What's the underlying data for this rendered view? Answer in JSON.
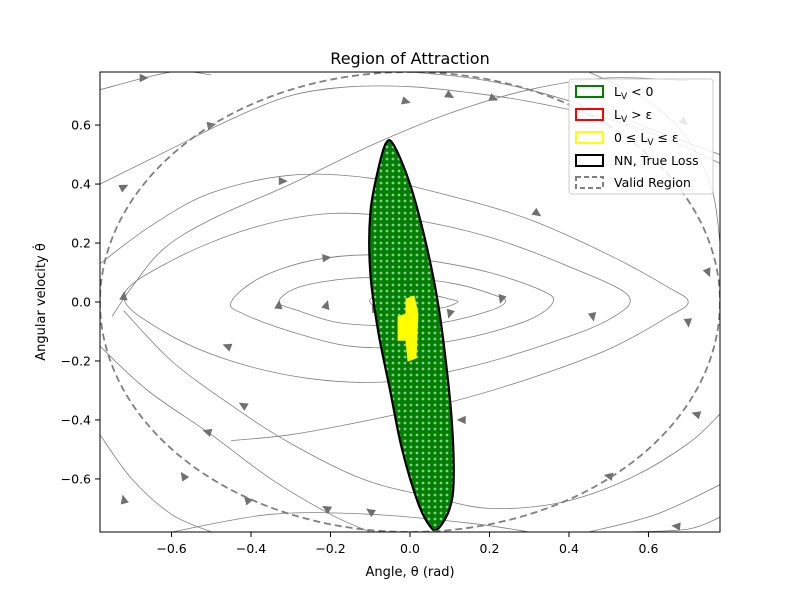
{
  "chart_data": {
    "type": "scatter",
    "title": "Region of Attraction",
    "xlabel": "Angle, θ (rad)",
    "ylabel": "Angular velocity θ̇",
    "xlim": [
      -0.78,
      0.78
    ],
    "ylim": [
      -0.78,
      0.78
    ],
    "x_ticks": [
      -0.6,
      -0.4,
      -0.2,
      0.0,
      0.2,
      0.4,
      0.6
    ],
    "y_ticks": [
      -0.6,
      -0.4,
      -0.2,
      0.0,
      0.2,
      0.4,
      0.6
    ],
    "x_tick_labels": [
      "−0.6",
      "−0.4",
      "−0.2",
      "0.0",
      "0.2",
      "0.4",
      "0.6"
    ],
    "y_tick_labels": [
      "−0.6",
      "−0.4",
      "−0.2",
      "0.0",
      "0.2",
      "0.4",
      "0.6"
    ],
    "grid": false,
    "legend_position": "top-right",
    "legend": [
      {
        "label": "L_V < 0",
        "color": "#008000",
        "style": "patch"
      },
      {
        "label": "L_V > ε",
        "color": "#ff0000",
        "style": "patch"
      },
      {
        "label": "0 ≤ L_V ≤ ε",
        "color": "#ffff00",
        "style": "patch"
      },
      {
        "label": "NN, True Loss",
        "color": "#000000",
        "style": "patch"
      },
      {
        "label": "Valid Region",
        "color": "#808080",
        "style": "dashed-patch"
      }
    ],
    "valid_region_ellipse": {
      "center": [
        0,
        0
      ],
      "semi_axis_x": 0.78,
      "semi_axis_y": 0.78,
      "color": "#808080",
      "line": "dashed"
    },
    "nn_level_set_boundary": [
      [
        0.07,
        -0.77
      ],
      [
        0.1,
        -0.7
      ],
      [
        0.11,
        -0.6
      ],
      [
        0.105,
        -0.4
      ],
      [
        0.09,
        -0.2
      ],
      [
        0.07,
        0.0
      ],
      [
        0.04,
        0.2
      ],
      [
        0.0,
        0.4
      ],
      [
        -0.04,
        0.53
      ],
      [
        -0.06,
        0.54
      ],
      [
        -0.08,
        0.45
      ],
      [
        -0.1,
        0.3
      ],
      [
        -0.1,
        0.1
      ],
      [
        -0.08,
        -0.1
      ],
      [
        -0.05,
        -0.3
      ],
      [
        -0.02,
        -0.5
      ],
      [
        0.02,
        -0.68
      ],
      [
        0.05,
        -0.76
      ]
    ],
    "lv_negative_color": "#008000",
    "lv_small_region": {
      "x": [
        -0.03,
        0.01
      ],
      "y": [
        -0.2,
        0.02
      ],
      "color": "#ffff00"
    },
    "lv_small_region_shape": [
      [
        -0.03,
        -0.05
      ],
      [
        -0.01,
        -0.04
      ],
      [
        -0.01,
        0.01
      ],
      [
        0.01,
        0.02
      ],
      [
        0.02,
        -0.04
      ],
      [
        0.015,
        -0.19
      ],
      [
        -0.005,
        -0.2
      ],
      [
        -0.01,
        -0.13
      ],
      [
        -0.03,
        -0.13
      ]
    ],
    "streamlines_color": "#808080",
    "streamlines": [
      [
        [
          0.7,
          0.75
        ],
        [
          0.5,
          0.76
        ],
        [
          0.3,
          0.72
        ],
        [
          0.1,
          0.64
        ],
        [
          -0.1,
          0.53
        ],
        [
          -0.3,
          0.4
        ],
        [
          -0.5,
          0.28
        ],
        [
          -0.62,
          0.18
        ],
        [
          -0.7,
          0.05
        ],
        [
          -0.75,
          -0.05
        ]
      ],
      [
        [
          -0.78,
          0.72
        ],
        [
          -0.6,
          0.78
        ],
        [
          -0.5,
          0.77
        ]
      ],
      [
        [
          -0.78,
          0.4
        ],
        [
          -0.6,
          0.52
        ],
        [
          -0.45,
          0.62
        ],
        [
          -0.3,
          0.7
        ],
        [
          -0.15,
          0.73
        ],
        [
          0.0,
          0.73
        ],
        [
          0.15,
          0.71
        ],
        [
          0.3,
          0.68
        ],
        [
          0.5,
          0.62
        ],
        [
          0.65,
          0.55
        ],
        [
          0.78,
          0.47
        ]
      ],
      [
        [
          -0.78,
          0.13
        ],
        [
          -0.65,
          0.26
        ],
        [
          -0.5,
          0.37
        ],
        [
          -0.3,
          0.43
        ],
        [
          -0.1,
          0.42
        ],
        [
          0.1,
          0.36
        ],
        [
          0.3,
          0.28
        ],
        [
          0.5,
          0.16
        ],
        [
          0.65,
          0.05
        ],
        [
          0.7,
          0.0
        ],
        [
          0.65,
          -0.05
        ],
        [
          0.5,
          -0.16
        ],
        [
          0.3,
          -0.26
        ],
        [
          0.1,
          -0.34
        ],
        [
          -0.1,
          -0.4
        ],
        [
          -0.3,
          -0.45
        ],
        [
          -0.45,
          -0.47
        ]
      ],
      [
        [
          -0.72,
          0.02
        ],
        [
          -0.6,
          0.14
        ],
        [
          -0.4,
          0.25
        ],
        [
          -0.2,
          0.3
        ],
        [
          0.0,
          0.28
        ],
        [
          0.2,
          0.22
        ],
        [
          0.4,
          0.12
        ],
        [
          0.55,
          0.02
        ],
        [
          0.5,
          -0.06
        ],
        [
          0.35,
          -0.14
        ],
        [
          0.15,
          -0.22
        ],
        [
          -0.05,
          -0.27
        ],
        [
          -0.25,
          -0.26
        ],
        [
          -0.45,
          -0.2
        ],
        [
          -0.62,
          -0.1
        ],
        [
          -0.72,
          0.02
        ]
      ],
      [
        [
          -0.45,
          0.0
        ],
        [
          -0.38,
          0.08
        ],
        [
          -0.25,
          0.14
        ],
        [
          -0.1,
          0.16
        ],
        [
          0.05,
          0.14
        ],
        [
          0.2,
          0.1
        ],
        [
          0.33,
          0.04
        ],
        [
          0.36,
          0.0
        ],
        [
          0.3,
          -0.06
        ],
        [
          0.15,
          -0.12
        ],
        [
          0.0,
          -0.15
        ],
        [
          -0.15,
          -0.15
        ],
        [
          -0.3,
          -0.1
        ],
        [
          -0.42,
          -0.04
        ],
        [
          -0.45,
          0.0
        ]
      ],
      [
        [
          -0.33,
          0.0
        ],
        [
          -0.28,
          0.05
        ],
        [
          -0.15,
          0.08
        ],
        [
          0.0,
          0.08
        ],
        [
          0.12,
          0.06
        ],
        [
          0.22,
          0.02
        ],
        [
          0.24,
          0.0
        ],
        [
          0.2,
          -0.03
        ],
        [
          0.08,
          -0.07
        ],
        [
          -0.05,
          -0.08
        ],
        [
          -0.18,
          -0.07
        ],
        [
          -0.28,
          -0.03
        ],
        [
          -0.33,
          0.0
        ]
      ],
      [
        [
          -0.1,
          0.01
        ],
        [
          -0.05,
          0.03
        ],
        [
          0.03,
          0.03
        ],
        [
          0.1,
          0.01
        ],
        [
          0.12,
          0.0
        ],
        [
          0.08,
          -0.02
        ],
        [
          0.0,
          -0.03
        ],
        [
          -0.08,
          -0.02
        ],
        [
          -0.1,
          0.01
        ]
      ],
      [
        [
          -0.78,
          -0.45
        ],
        [
          -0.7,
          -0.6
        ],
        [
          -0.6,
          -0.72
        ],
        [
          -0.5,
          -0.78
        ]
      ],
      [
        [
          -0.78,
          -0.15
        ],
        [
          -0.66,
          -0.3
        ],
        [
          -0.5,
          -0.45
        ],
        [
          -0.35,
          -0.6
        ],
        [
          -0.2,
          -0.72
        ],
        [
          -0.1,
          -0.78
        ]
      ],
      [
        [
          -0.72,
          -0.03
        ],
        [
          -0.6,
          -0.2
        ],
        [
          -0.45,
          -0.35
        ],
        [
          -0.3,
          -0.48
        ],
        [
          -0.12,
          -0.6
        ],
        [
          0.05,
          -0.66
        ],
        [
          0.2,
          -0.7
        ],
        [
          0.38,
          -0.68
        ],
        [
          0.55,
          -0.6
        ],
        [
          0.7,
          -0.48
        ],
        [
          0.78,
          -0.38
        ]
      ],
      [
        [
          -0.6,
          -0.78
        ],
        [
          -0.35,
          -0.72
        ],
        [
          -0.1,
          -0.72
        ],
        [
          0.15,
          -0.75
        ],
        [
          0.3,
          -0.78
        ]
      ],
      [
        [
          0.45,
          -0.78
        ],
        [
          0.62,
          -0.72
        ],
        [
          0.78,
          -0.62
        ]
      ],
      [
        [
          0.55,
          -0.78
        ],
        [
          0.7,
          -0.77
        ],
        [
          0.78,
          -0.73
        ]
      ],
      [
        [
          0.0,
          0.78
        ],
        [
          0.15,
          0.76
        ],
        [
          0.3,
          0.72
        ],
        [
          0.5,
          0.64
        ],
        [
          0.62,
          0.58
        ],
        [
          0.78,
          0.5
        ]
      ],
      [
        [
          0.45,
          0.78
        ],
        [
          0.6,
          0.68
        ],
        [
          0.7,
          0.55
        ],
        [
          0.76,
          0.38
        ],
        [
          0.78,
          0.2
        ]
      ]
    ],
    "streamline_arrows": [
      [
        -0.67,
        0.76,
        1,
        0
      ],
      [
        -0.01,
        0.68,
        1,
        -0.3
      ],
      [
        0.1,
        0.7,
        1,
        -0.6
      ],
      [
        0.21,
        0.69,
        1,
        -0.4
      ],
      [
        0.69,
        0.61,
        1,
        -1
      ],
      [
        -0.5,
        0.6,
        1,
        0.2
      ],
      [
        -0.72,
        0.39,
        1,
        0.5
      ],
      [
        -0.32,
        0.41,
        1,
        0
      ],
      [
        0.32,
        0.3,
        1,
        -0.7
      ],
      [
        -0.21,
        0.15,
        1,
        0.1
      ],
      [
        0.46,
        -0.05,
        0.2,
        -1
      ],
      [
        0.7,
        -0.07,
        0.1,
        -1
      ],
      [
        0.23,
        0.01,
        -0.3,
        -1
      ],
      [
        -0.72,
        0.02,
        0.1,
        1
      ],
      [
        -0.33,
        -0.01,
        0.1,
        1
      ],
      [
        -0.21,
        -0.01,
        0.3,
        1
      ],
      [
        -0.09,
        -0.02,
        -0.5,
        1
      ],
      [
        -0.46,
        -0.15,
        -1,
        0.4
      ],
      [
        -0.42,
        -0.35,
        -1,
        0.6
      ],
      [
        -0.51,
        -0.44,
        -1,
        0.3
      ],
      [
        -0.57,
        -0.59,
        -0.4,
        0.6
      ],
      [
        -0.72,
        -0.67,
        -0.2,
        0.8
      ],
      [
        -0.41,
        -0.67,
        -0.5,
        0.6
      ],
      [
        -0.21,
        -0.7,
        -0.7,
        0.4
      ],
      [
        -0.1,
        -0.71,
        -0.6,
        0.4
      ],
      [
        0.13,
        -0.4,
        -1,
        0
      ],
      [
        0.5,
        -0.59,
        -1,
        0.2
      ],
      [
        0.72,
        -0.38,
        -1,
        0.3
      ],
      [
        0.67,
        -0.76,
        -1,
        0.1
      ],
      [
        0.75,
        0.1,
        0.4,
        -1
      ],
      [
        0.1,
        -0.04,
        -0.3,
        -1
      ]
    ],
    "stable_grid_dot_color": "#90c890"
  }
}
